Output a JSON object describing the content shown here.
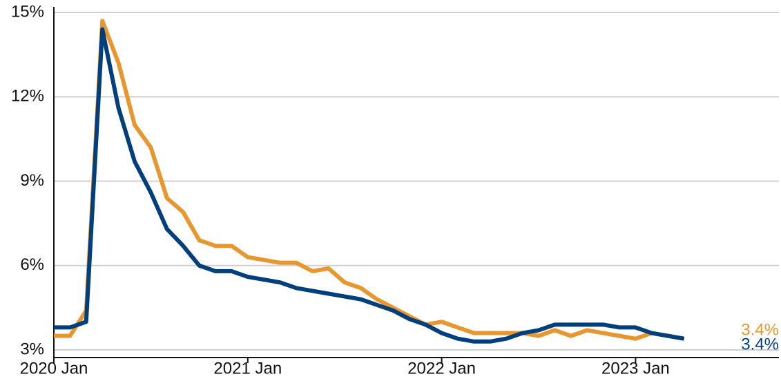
{
  "chart_data": {
    "type": "line",
    "x": [
      "2020 Jan",
      "2020 Feb",
      "2020 Mar",
      "2020 Apr",
      "2020 May",
      "2020 Jun",
      "2020 Jul",
      "2020 Aug",
      "2020 Sep",
      "2020 Oct",
      "2020 Nov",
      "2020 Dec",
      "2021 Jan",
      "2021 Feb",
      "2021 Mar",
      "2021 Apr",
      "2021 May",
      "2021 Jun",
      "2021 Jul",
      "2021 Aug",
      "2021 Sep",
      "2021 Oct",
      "2021 Nov",
      "2021 Dec",
      "2022 Jan",
      "2022 Feb",
      "2022 Mar",
      "2022 Apr",
      "2022 May",
      "2022 Jun",
      "2022 Jul",
      "2022 Aug",
      "2022 Sep",
      "2022 Oct",
      "2022 Nov",
      "2022 Dec",
      "2023 Jan",
      "2023 Feb",
      "2023 Mar",
      "2023 Apr"
    ],
    "series": [
      {
        "color": "#003f7d",
        "end_label": "3.4%",
        "values": [
          3.8,
          3.8,
          4.0,
          14.4,
          11.6,
          9.7,
          8.6,
          7.3,
          6.7,
          6.0,
          5.8,
          5.8,
          5.6,
          5.5,
          5.4,
          5.2,
          5.1,
          5.0,
          4.9,
          4.8,
          4.6,
          4.4,
          4.1,
          3.9,
          3.6,
          3.4,
          3.3,
          3.3,
          3.4,
          3.6,
          3.7,
          3.9,
          3.9,
          3.9,
          3.9,
          3.8,
          3.8,
          3.6,
          3.5,
          3.4
        ]
      },
      {
        "color": "#e8962e",
        "end_label": "3.4%",
        "values": [
          3.5,
          3.5,
          4.4,
          14.7,
          13.2,
          11.0,
          10.2,
          8.4,
          7.9,
          6.9,
          6.7,
          6.7,
          6.3,
          6.2,
          6.1,
          6.1,
          5.8,
          5.9,
          5.4,
          5.2,
          4.8,
          4.5,
          4.2,
          3.9,
          4.0,
          3.8,
          3.6,
          3.6,
          3.6,
          3.6,
          3.5,
          3.7,
          3.5,
          3.7,
          3.6,
          3.5,
          3.4,
          3.6,
          3.5,
          3.4
        ]
      }
    ],
    "xticks": [
      "2020 Jan",
      "2021 Jan",
      "2022 Jan",
      "2023 Jan"
    ],
    "ylim": [
      3,
      15
    ],
    "yticks": [
      {
        "value": 3,
        "label": "3%"
      },
      {
        "value": 6,
        "label": "6%"
      },
      {
        "value": 9,
        "label": "9%"
      },
      {
        "value": 12,
        "label": "12%"
      },
      {
        "value": 15,
        "label": "15%"
      }
    ],
    "grid": true
  }
}
